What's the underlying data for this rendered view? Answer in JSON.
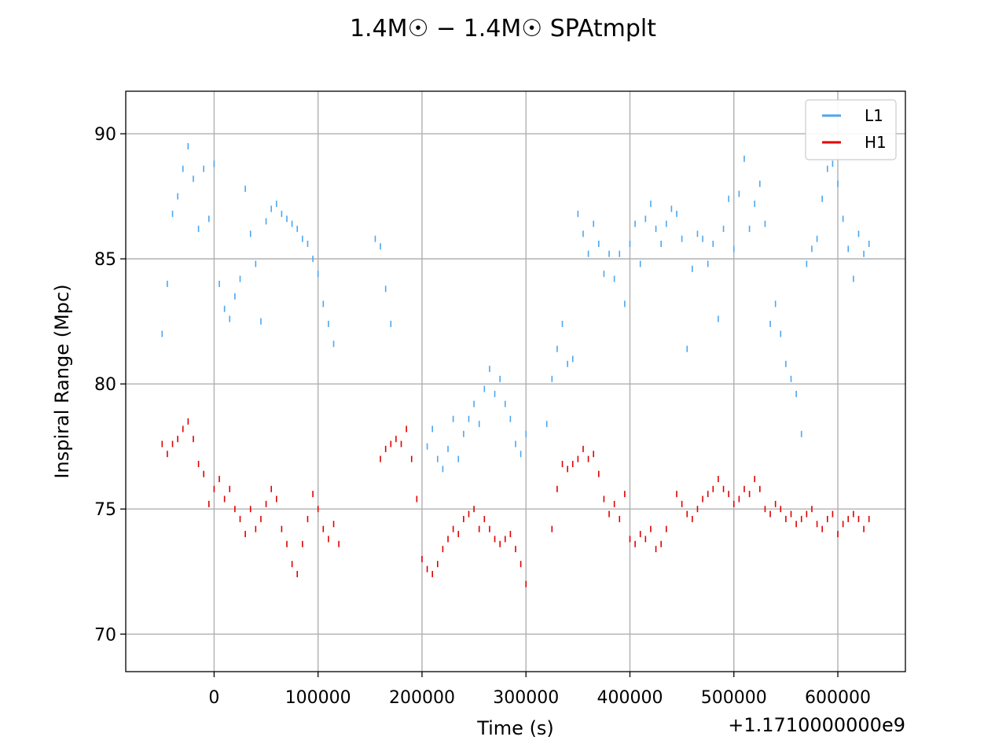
{
  "chart_data": {
    "type": "scatter",
    "title": "1.4M☉ − 1.4M☉ SPAtmplt",
    "xlabel": "Time (s)",
    "ylabel": "Inspiral Range (Mpc)",
    "x_offset_label": "+1.1710000000e9",
    "xlim": [
      -85000,
      665000
    ],
    "ylim": [
      68.5,
      91.7
    ],
    "x_ticks": [
      0,
      100000,
      200000,
      300000,
      400000,
      500000,
      600000
    ],
    "x_tick_labels": [
      "0",
      "100000",
      "200000",
      "300000",
      "400000",
      "500000",
      "600000"
    ],
    "y_ticks": [
      70,
      75,
      80,
      85,
      90
    ],
    "y_tick_labels": [
      "70",
      "75",
      "80",
      "85",
      "90"
    ],
    "grid": true,
    "legend_position": "top-right",
    "series": [
      {
        "name": "L1",
        "color": "#4ba6f1",
        "x": [
          -50000,
          -45000,
          -40000,
          -35000,
          -30000,
          -25000,
          -20000,
          -15000,
          -10000,
          -5000,
          0,
          5000,
          10000,
          15000,
          20000,
          25000,
          30000,
          35000,
          40000,
          45000,
          50000,
          55000,
          60000,
          65000,
          70000,
          75000,
          80000,
          85000,
          90000,
          95000,
          100000,
          105000,
          110000,
          115000,
          155000,
          160000,
          165000,
          170000,
          205000,
          210000,
          215000,
          220000,
          225000,
          230000,
          235000,
          240000,
          245000,
          250000,
          255000,
          260000,
          265000,
          270000,
          275000,
          280000,
          285000,
          290000,
          295000,
          300000,
          320000,
          325000,
          330000,
          335000,
          340000,
          345000,
          350000,
          355000,
          360000,
          365000,
          370000,
          375000,
          380000,
          385000,
          390000,
          395000,
          400000,
          405000,
          410000,
          415000,
          420000,
          425000,
          430000,
          435000,
          440000,
          445000,
          450000,
          455000,
          460000,
          465000,
          470000,
          475000,
          480000,
          485000,
          490000,
          495000,
          500000,
          505000,
          510000,
          515000,
          520000,
          525000,
          530000,
          535000,
          540000,
          545000,
          550000,
          555000,
          560000,
          565000,
          570000,
          575000,
          580000,
          585000,
          590000,
          595000,
          600000,
          605000,
          610000,
          615000,
          620000,
          625000,
          630000
        ],
        "y": [
          82.0,
          84.0,
          86.8,
          87.5,
          88.6,
          89.5,
          88.2,
          86.2,
          88.6,
          86.6,
          88.8,
          84.0,
          83.0,
          82.6,
          83.5,
          84.2,
          87.8,
          86.0,
          84.8,
          82.5,
          86.5,
          87.0,
          87.2,
          86.8,
          86.6,
          86.4,
          86.2,
          85.8,
          85.6,
          85.0,
          84.4,
          83.2,
          82.4,
          81.6,
          85.8,
          85.5,
          83.8,
          82.4,
          77.5,
          78.2,
          77.0,
          76.6,
          77.4,
          78.6,
          77.0,
          78.0,
          78.6,
          79.2,
          78.4,
          79.8,
          80.6,
          79.6,
          80.2,
          79.2,
          78.6,
          77.6,
          77.2,
          78.0,
          78.4,
          80.2,
          81.4,
          82.4,
          80.8,
          81.0,
          86.8,
          86.0,
          85.2,
          86.4,
          85.6,
          84.4,
          85.2,
          84.2,
          85.2,
          83.2,
          85.6,
          86.4,
          84.8,
          86.6,
          87.2,
          86.2,
          85.6,
          86.4,
          87.0,
          86.8,
          85.8,
          81.4,
          84.6,
          86.0,
          85.8,
          84.8,
          85.6,
          82.6,
          86.2,
          87.4,
          85.4,
          87.6,
          89.0,
          86.2,
          87.2,
          88.0,
          86.4,
          82.4,
          83.2,
          82.0,
          80.8,
          80.2,
          79.6,
          78.0,
          84.8,
          85.4,
          85.8,
          87.4,
          88.6,
          88.8,
          88.0,
          86.6,
          85.4,
          84.2,
          86.0,
          85.2,
          85.6
        ]
      },
      {
        "name": "H1",
        "color": "#e00000",
        "x": [
          -50000,
          -45000,
          -40000,
          -35000,
          -30000,
          -25000,
          -20000,
          -15000,
          -10000,
          -5000,
          0,
          5000,
          10000,
          15000,
          20000,
          25000,
          30000,
          35000,
          40000,
          45000,
          50000,
          55000,
          60000,
          65000,
          70000,
          75000,
          80000,
          85000,
          90000,
          95000,
          100000,
          105000,
          110000,
          115000,
          120000,
          160000,
          165000,
          170000,
          175000,
          180000,
          185000,
          190000,
          195000,
          200000,
          205000,
          210000,
          215000,
          220000,
          225000,
          230000,
          235000,
          240000,
          245000,
          250000,
          255000,
          260000,
          265000,
          270000,
          275000,
          280000,
          285000,
          290000,
          295000,
          300000,
          325000,
          330000,
          335000,
          340000,
          345000,
          350000,
          355000,
          360000,
          365000,
          370000,
          375000,
          380000,
          385000,
          390000,
          395000,
          400000,
          405000,
          410000,
          415000,
          420000,
          425000,
          430000,
          435000,
          445000,
          450000,
          455000,
          460000,
          465000,
          470000,
          475000,
          480000,
          485000,
          490000,
          495000,
          500000,
          505000,
          510000,
          515000,
          520000,
          525000,
          530000,
          535000,
          540000,
          545000,
          550000,
          555000,
          560000,
          565000,
          570000,
          575000,
          580000,
          585000,
          590000,
          595000,
          600000,
          605000,
          610000,
          615000,
          620000,
          625000,
          630000
        ],
        "y": [
          77.6,
          77.2,
          77.6,
          77.8,
          78.2,
          78.5,
          77.8,
          76.8,
          76.4,
          75.2,
          75.8,
          76.2,
          75.4,
          75.8,
          75.0,
          74.6,
          74.0,
          75.0,
          74.2,
          74.6,
          75.2,
          75.8,
          75.4,
          74.2,
          73.6,
          72.8,
          72.4,
          73.6,
          74.6,
          75.6,
          75.0,
          74.2,
          73.8,
          74.4,
          73.6,
          77.0,
          77.4,
          77.6,
          77.8,
          77.6,
          78.2,
          77.0,
          75.4,
          73.0,
          72.6,
          72.4,
          72.8,
          73.4,
          73.8,
          74.2,
          74.0,
          74.6,
          74.8,
          75.0,
          74.2,
          74.6,
          74.2,
          73.8,
          73.6,
          73.8,
          74.0,
          73.4,
          72.8,
          72.0,
          74.2,
          75.8,
          76.8,
          76.6,
          76.8,
          77.0,
          77.4,
          77.0,
          77.2,
          76.4,
          75.4,
          74.8,
          75.2,
          74.6,
          75.6,
          73.8,
          73.6,
          74.0,
          73.8,
          74.2,
          73.4,
          73.6,
          74.2,
          75.6,
          75.2,
          74.8,
          74.6,
          75.0,
          75.4,
          75.6,
          75.8,
          76.2,
          75.8,
          75.6,
          75.2,
          75.4,
          75.8,
          75.6,
          76.2,
          75.8,
          75.0,
          74.8,
          75.2,
          75.0,
          74.6,
          74.8,
          74.4,
          74.6,
          74.8,
          75.0,
          74.4,
          74.2,
          74.6,
          74.8,
          74.0,
          74.4,
          74.6,
          74.8,
          74.6,
          74.2,
          74.6
        ]
      }
    ]
  }
}
